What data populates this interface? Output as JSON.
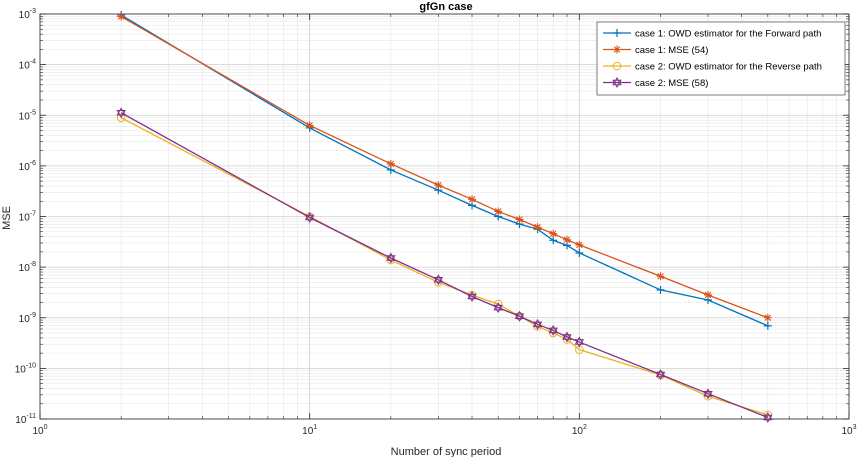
{
  "chart_data": {
    "type": "line",
    "title": "gfGn case",
    "xlabel": "Number of sync period",
    "ylabel": "MSE",
    "xscale": "log",
    "yscale": "log",
    "xlim": [
      1,
      1000
    ],
    "ylim_exponents": [
      -11,
      -3
    ],
    "x_ticks": [
      {
        "base": "10",
        "exp": "0"
      },
      {
        "base": "10",
        "exp": "1"
      },
      {
        "base": "10",
        "exp": "2"
      },
      {
        "base": "10",
        "exp": "3"
      }
    ],
    "y_ticks": [
      {
        "base": "10",
        "exp": "-3"
      },
      {
        "base": "10",
        "exp": "-4"
      },
      {
        "base": "10",
        "exp": "-5"
      },
      {
        "base": "10",
        "exp": "-6"
      },
      {
        "base": "10",
        "exp": "-7"
      },
      {
        "base": "10",
        "exp": "-8"
      },
      {
        "base": "10",
        "exp": "-9"
      },
      {
        "base": "10",
        "exp": "-10"
      },
      {
        "base": "10",
        "exp": "-11"
      }
    ],
    "grid": true,
    "legend_position": "top-right",
    "series": [
      {
        "name": "case 1: OWD estimator for the Forward path",
        "color": "#0072BD",
        "marker": "plus",
        "x": [
          2,
          10,
          20,
          30,
          40,
          50,
          60,
          70,
          80,
          90,
          100,
          200,
          300,
          500
        ],
        "log10_y": [
          -3.02,
          -5.25,
          -6.08,
          -6.48,
          -6.78,
          -7.0,
          -7.15,
          -7.25,
          -7.47,
          -7.57,
          -7.72,
          -8.45,
          -8.65,
          -9.16
        ]
      },
      {
        "name": "case 1: MSE (54)",
        "color": "#D95319",
        "marker": "asterisk",
        "x": [
          2,
          10,
          20,
          30,
          40,
          50,
          60,
          70,
          80,
          90,
          100,
          200,
          300,
          500
        ],
        "log10_y": [
          -3.05,
          -5.2,
          -5.96,
          -6.38,
          -6.66,
          -6.9,
          -7.06,
          -7.21,
          -7.34,
          -7.46,
          -7.56,
          -8.18,
          -8.55,
          -9.0
        ]
      },
      {
        "name": "case 2: OWD estimator for the Reverse path",
        "color": "#EDB120",
        "marker": "circle",
        "x": [
          2,
          10,
          20,
          30,
          40,
          50,
          60,
          70,
          80,
          90,
          100,
          200,
          300,
          500
        ],
        "log10_y": [
          -5.05,
          -7.0,
          -7.86,
          -8.3,
          -8.55,
          -8.73,
          -8.97,
          -9.17,
          -9.3,
          -9.43,
          -9.63,
          -10.13,
          -10.55,
          -10.92
        ]
      },
      {
        "name": "case 2: MSE (58)",
        "color": "#7E2F8E",
        "marker": "hexagram",
        "x": [
          2,
          10,
          20,
          30,
          40,
          50,
          60,
          70,
          80,
          90,
          100,
          200,
          300,
          500
        ],
        "log10_y": [
          -4.95,
          -7.02,
          -7.82,
          -8.25,
          -8.58,
          -8.8,
          -8.97,
          -9.13,
          -9.25,
          -9.38,
          -9.48,
          -10.12,
          -10.5,
          -10.97
        ]
      }
    ]
  }
}
